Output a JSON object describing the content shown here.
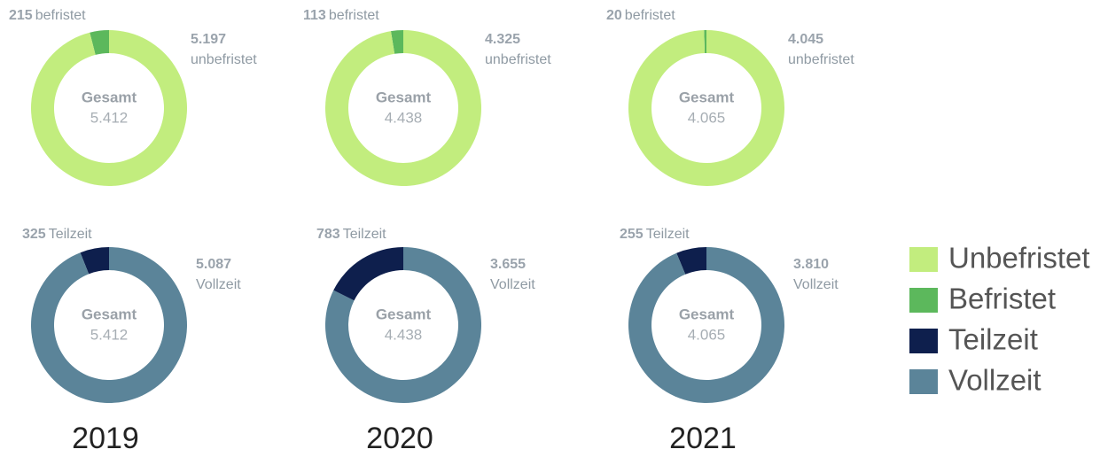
{
  "chart_data": [
    {
      "type": "pie",
      "donut": true,
      "center_title": "Gesamt",
      "center_value": "5.412",
      "categories": [
        "befristet",
        "unbefristet"
      ],
      "values": [
        215,
        5197
      ],
      "value_labels": [
        "215",
        "5.197"
      ],
      "colors": [
        "#5cb85c",
        "#c2ed7e"
      ]
    },
    {
      "type": "pie",
      "donut": true,
      "center_title": "Gesamt",
      "center_value": "4.438",
      "categories": [
        "befristet",
        "unbefristet"
      ],
      "values": [
        113,
        4325
      ],
      "value_labels": [
        "113",
        "4.325"
      ],
      "colors": [
        "#5cb85c",
        "#c2ed7e"
      ]
    },
    {
      "type": "pie",
      "donut": true,
      "center_title": "Gesamt",
      "center_value": "4.065",
      "categories": [
        "befristet",
        "unbefristet"
      ],
      "values": [
        20,
        4045
      ],
      "value_labels": [
        "20",
        "4.045"
      ],
      "colors": [
        "#5cb85c",
        "#c2ed7e"
      ]
    },
    {
      "type": "pie",
      "donut": true,
      "center_title": "Gesamt",
      "center_value": "5.412",
      "categories": [
        "Teilzeit",
        "Vollzeit"
      ],
      "values": [
        325,
        5087
      ],
      "value_labels": [
        "325",
        "5.087"
      ],
      "colors": [
        "#0e1f4d",
        "#5b8499"
      ]
    },
    {
      "type": "pie",
      "donut": true,
      "center_title": "Gesamt",
      "center_value": "4.438",
      "categories": [
        "Teilzeit",
        "Vollzeit"
      ],
      "values": [
        783,
        3655
      ],
      "value_labels": [
        "783",
        "3.655"
      ],
      "colors": [
        "#0e1f4d",
        "#5b8499"
      ]
    },
    {
      "type": "pie",
      "donut": true,
      "center_title": "Gesamt",
      "center_value": "4.065",
      "categories": [
        "Teilzeit",
        "Vollzeit"
      ],
      "values": [
        255,
        3810
      ],
      "value_labels": [
        "255",
        "3.810"
      ],
      "colors": [
        "#0e1f4d",
        "#5b8499"
      ]
    }
  ],
  "years": [
    "2019",
    "2020",
    "2021"
  ],
  "legend": [
    {
      "name": "Unbefristet",
      "color": "#c2ed7e"
    },
    {
      "name": "Befristet",
      "color": "#5cb85c"
    },
    {
      "name": "Teilzeit",
      "color": "#0e1f4d"
    },
    {
      "name": "Vollzeit",
      "color": "#5b8499"
    }
  ]
}
